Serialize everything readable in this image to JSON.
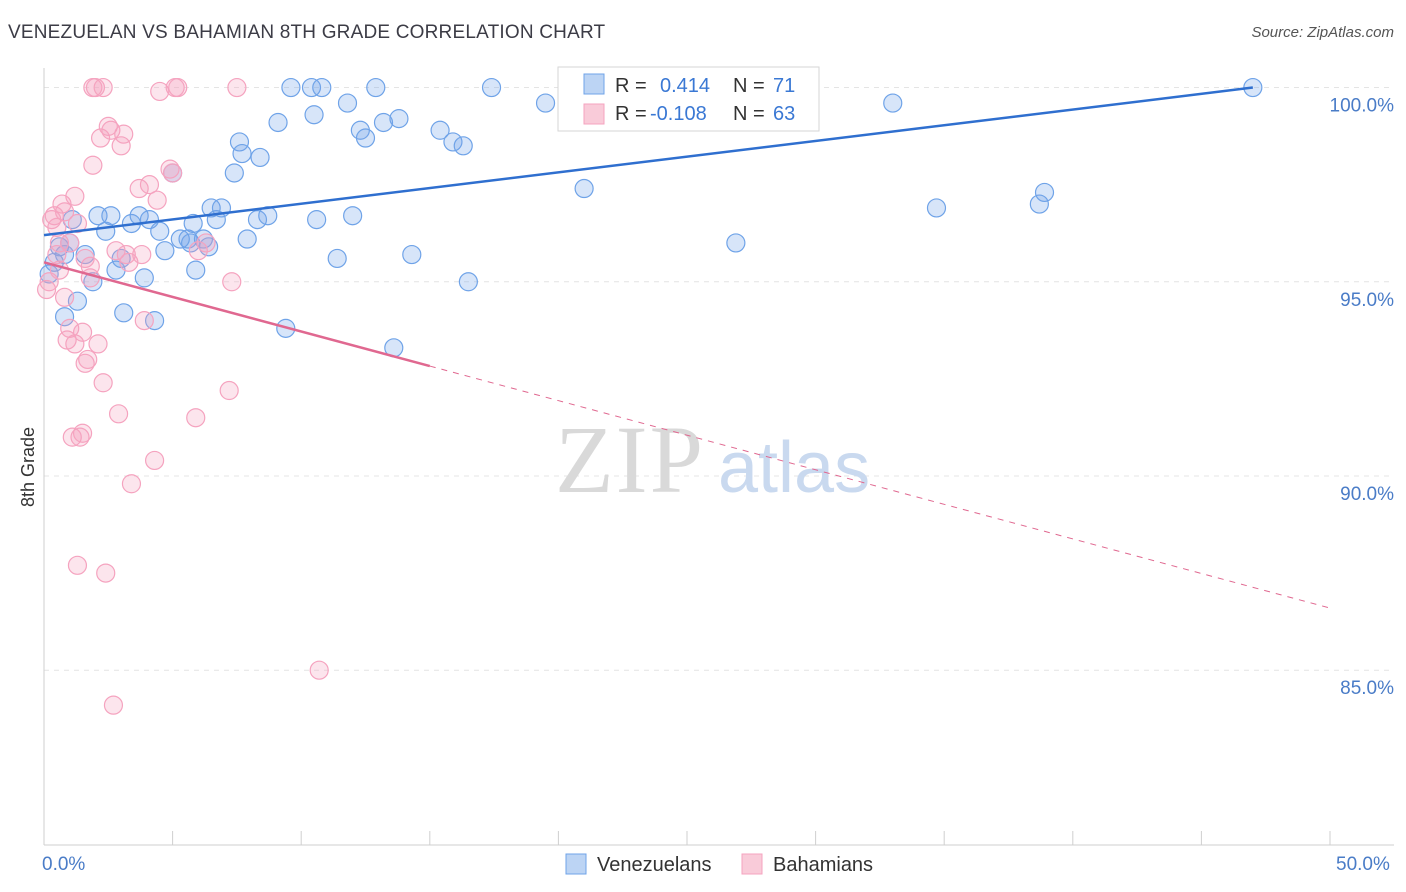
{
  "title": "VENEZUELAN VS BAHAMIAN 8TH GRADE CORRELATION CHART",
  "source": "Source: ZipAtlas.com",
  "watermark": {
    "left": "ZIP",
    "right": "atlas"
  },
  "chart_data": {
    "type": "scatter",
    "title": "VENEZUELAN VS BAHAMIAN 8TH GRADE CORRELATION CHART",
    "xlabel": "",
    "ylabel": "8th Grade",
    "xlim": [
      0,
      50
    ],
    "ylim": [
      80.5,
      100.4
    ],
    "x_tick_labels": [
      "0.0%",
      "50.0%"
    ],
    "y_ticks": [
      {
        "value": 85,
        "label": "85.0%"
      },
      {
        "value": 90,
        "label": "90.0%"
      },
      {
        "value": 95,
        "label": "95.0%"
      },
      {
        "value": 100,
        "label": "100.0%"
      }
    ],
    "legend": [
      {
        "name": "Venezuelans",
        "color": "#6fa3e8",
        "stroke": "#3a78d4",
        "r_label": "R =",
        "r_value": "0.414",
        "n_label": "N =",
        "n_value": "71"
      },
      {
        "name": "Bahamians",
        "color": "#f5a3bf",
        "stroke": "#e0607f",
        "r_label": "R =",
        "r_value": "-0.108",
        "n_label": "N =",
        "n_value": "63"
      }
    ],
    "series": [
      {
        "name": "Venezuelans",
        "trend": {
          "x0": 0,
          "y0": 96.2,
          "x1": 47,
          "y1": 100.0,
          "x_end_solid": 47
        },
        "points": [
          [
            0.2,
            95.2
          ],
          [
            0.4,
            95.5
          ],
          [
            0.6,
            95.9
          ],
          [
            0.8,
            94.1
          ],
          [
            0.8,
            95.7
          ],
          [
            1.0,
            96.0
          ],
          [
            1.1,
            96.6
          ],
          [
            1.3,
            94.5
          ],
          [
            1.6,
            95.7
          ],
          [
            1.9,
            95.0
          ],
          [
            2.1,
            96.7
          ],
          [
            2.4,
            96.3
          ],
          [
            2.6,
            96.7
          ],
          [
            2.8,
            95.3
          ],
          [
            3.0,
            95.6
          ],
          [
            3.1,
            94.2
          ],
          [
            3.4,
            96.5
          ],
          [
            3.7,
            96.7
          ],
          [
            3.9,
            95.1
          ],
          [
            4.1,
            96.6
          ],
          [
            4.3,
            94.0
          ],
          [
            4.5,
            96.3
          ],
          [
            4.7,
            95.8
          ],
          [
            5.0,
            97.8
          ],
          [
            5.3,
            96.1
          ],
          [
            5.6,
            96.1
          ],
          [
            5.7,
            96.0
          ],
          [
            5.8,
            96.5
          ],
          [
            5.9,
            95.3
          ],
          [
            6.2,
            96.1
          ],
          [
            6.4,
            95.9
          ],
          [
            6.5,
            96.9
          ],
          [
            6.7,
            96.6
          ],
          [
            6.9,
            96.9
          ],
          [
            7.4,
            97.8
          ],
          [
            7.6,
            98.6
          ],
          [
            7.7,
            98.3
          ],
          [
            7.9,
            96.1
          ],
          [
            8.3,
            96.6
          ],
          [
            8.4,
            98.2
          ],
          [
            8.7,
            96.7
          ],
          [
            9.1,
            99.1
          ],
          [
            9.4,
            93.8
          ],
          [
            9.6,
            100.0
          ],
          [
            10.4,
            100.0
          ],
          [
            10.5,
            99.3
          ],
          [
            10.6,
            96.6
          ],
          [
            10.8,
            100.0
          ],
          [
            11.4,
            95.6
          ],
          [
            11.8,
            99.6
          ],
          [
            12.0,
            96.7
          ],
          [
            12.3,
            98.9
          ],
          [
            12.5,
            98.7
          ],
          [
            12.9,
            100.0
          ],
          [
            13.2,
            99.1
          ],
          [
            13.6,
            93.3
          ],
          [
            13.8,
            99.2
          ],
          [
            14.3,
            95.7
          ],
          [
            15.4,
            98.9
          ],
          [
            15.9,
            98.6
          ],
          [
            16.3,
            98.5
          ],
          [
            16.5,
            95.0
          ],
          [
            17.4,
            100.0
          ],
          [
            19.5,
            99.6
          ],
          [
            21.0,
            97.4
          ],
          [
            26.9,
            96.0
          ],
          [
            33.0,
            99.6
          ],
          [
            34.7,
            96.9
          ],
          [
            38.7,
            97.0
          ],
          [
            38.9,
            97.3
          ],
          [
            47.0,
            100.0
          ]
        ]
      },
      {
        "name": "Bahamians",
        "trend": {
          "x0": 0,
          "y0": 95.5,
          "x1": 50,
          "y1": 86.6,
          "x_end_solid": 15
        },
        "points": [
          [
            0.1,
            94.8
          ],
          [
            0.2,
            95.0
          ],
          [
            0.3,
            96.6
          ],
          [
            0.4,
            96.7
          ],
          [
            0.5,
            96.4
          ],
          [
            0.5,
            95.7
          ],
          [
            0.6,
            95.3
          ],
          [
            0.6,
            96.0
          ],
          [
            0.7,
            97.0
          ],
          [
            0.8,
            96.8
          ],
          [
            0.8,
            94.6
          ],
          [
            0.9,
            93.5
          ],
          [
            1.0,
            93.8
          ],
          [
            1.0,
            96.0
          ],
          [
            1.1,
            91.0
          ],
          [
            1.2,
            97.2
          ],
          [
            1.2,
            93.4
          ],
          [
            1.3,
            96.5
          ],
          [
            1.3,
            87.7
          ],
          [
            1.4,
            91.0
          ],
          [
            1.5,
            91.1
          ],
          [
            1.5,
            93.7
          ],
          [
            1.6,
            92.9
          ],
          [
            1.7,
            93.0
          ],
          [
            1.8,
            95.1
          ],
          [
            1.8,
            95.4
          ],
          [
            1.9,
            98.0
          ],
          [
            1.9,
            100.0
          ],
          [
            2.0,
            100.0
          ],
          [
            2.1,
            93.4
          ],
          [
            2.2,
            98.7
          ],
          [
            2.3,
            92.4
          ],
          [
            2.3,
            100.0
          ],
          [
            2.4,
            87.5
          ],
          [
            2.5,
            99.0
          ],
          [
            2.6,
            98.9
          ],
          [
            2.7,
            84.1
          ],
          [
            2.8,
            95.8
          ],
          [
            2.9,
            91.6
          ],
          [
            3.0,
            98.5
          ],
          [
            3.1,
            98.8
          ],
          [
            3.2,
            95.7
          ],
          [
            3.3,
            95.5
          ],
          [
            3.4,
            89.8
          ],
          [
            3.7,
            97.4
          ],
          [
            3.8,
            95.7
          ],
          [
            3.9,
            94.0
          ],
          [
            4.1,
            97.5
          ],
          [
            4.3,
            90.4
          ],
          [
            4.4,
            97.1
          ],
          [
            4.5,
            99.9
          ],
          [
            4.9,
            97.9
          ],
          [
            5.0,
            97.8
          ],
          [
            5.1,
            100.0
          ],
          [
            5.2,
            100.0
          ],
          [
            5.9,
            91.5
          ],
          [
            6.0,
            95.8
          ],
          [
            6.3,
            96.0
          ],
          [
            7.2,
            92.2
          ],
          [
            7.3,
            95.0
          ],
          [
            7.5,
            100.0
          ],
          [
            10.7,
            85.0
          ],
          [
            1.6,
            95.6
          ]
        ]
      }
    ]
  }
}
